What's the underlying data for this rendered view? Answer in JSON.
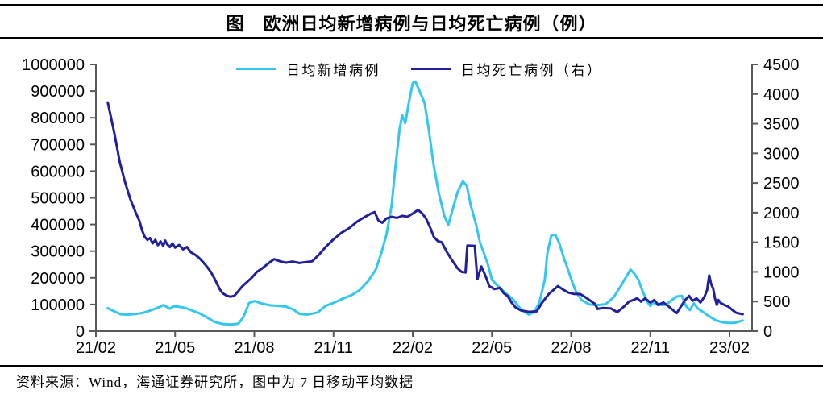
{
  "header": {
    "title": "图　欧洲日均新增病例与日均死亡病例（例）"
  },
  "footer": {
    "source": "资料来源：Wind，海通证券研究所，图中为 7 日移动平均数据"
  },
  "colors": {
    "new_cases_line": "#33C7F0",
    "deaths_line": "#21219B",
    "axis_line": "#595959",
    "text": "#000000"
  },
  "chart_data": {
    "type": "line",
    "title": "图　欧洲日均新增病例与日均死亡病例（例）",
    "xlabel": "",
    "ylabel_left": "",
    "ylabel_right": "",
    "grid": false,
    "legend_position": "top-center",
    "legend": [
      {
        "label": "日均新增病例",
        "color": "#33C7F0",
        "axis": "left"
      },
      {
        "label": "日均死亡病例（右）",
        "color": "#21219B",
        "axis": "right"
      }
    ],
    "x_axis": {
      "tick_labels": [
        "21/02",
        "21/05",
        "21/08",
        "21/11",
        "22/02",
        "22/05",
        "22/08",
        "22/11",
        "23/02"
      ],
      "months_per_tick": 3,
      "range_months": [
        0,
        24.6
      ]
    },
    "y_axis_left": {
      "min": 0,
      "max": 1000000,
      "step": 100000,
      "tick_labels": [
        "0",
        "100000",
        "200000",
        "300000",
        "400000",
        "500000",
        "600000",
        "700000",
        "800000",
        "900000",
        "1000000"
      ]
    },
    "y_axis_right": {
      "min": 0,
      "max": 4500,
      "step": 500,
      "tick_labels": [
        "0",
        "500",
        "1000",
        "1500",
        "2000",
        "2500",
        "3000",
        "3500",
        "4000",
        "4500"
      ]
    },
    "series": [
      {
        "name": "日均新增病例",
        "axis": "left",
        "color": "#33C7F0",
        "points": [
          [
            0.45,
            86000
          ],
          [
            0.7,
            74000
          ],
          [
            0.95,
            63000
          ],
          [
            1.2,
            62000
          ],
          [
            1.5,
            64000
          ],
          [
            1.8,
            69000
          ],
          [
            2.1,
            79000
          ],
          [
            2.4,
            90000
          ],
          [
            2.55,
            98000
          ],
          [
            2.7,
            90000
          ],
          [
            2.8,
            84000
          ],
          [
            2.95,
            93000
          ],
          [
            3.1,
            92000
          ],
          [
            3.35,
            88000
          ],
          [
            3.6,
            79000
          ],
          [
            3.9,
            68000
          ],
          [
            4.2,
            52000
          ],
          [
            4.5,
            34000
          ],
          [
            4.8,
            27000
          ],
          [
            5.1,
            25000
          ],
          [
            5.4,
            28000
          ],
          [
            5.6,
            55000
          ],
          [
            5.8,
            105000
          ],
          [
            6.0,
            113000
          ],
          [
            6.3,
            103000
          ],
          [
            6.6,
            97000
          ],
          [
            6.9,
            95000
          ],
          [
            7.2,
            92000
          ],
          [
            7.5,
            80000
          ],
          [
            7.7,
            65000
          ],
          [
            8.0,
            62000
          ],
          [
            8.4,
            70000
          ],
          [
            8.7,
            95000
          ],
          [
            9.0,
            106000
          ],
          [
            9.3,
            120000
          ],
          [
            9.7,
            136000
          ],
          [
            10.0,
            155000
          ],
          [
            10.3,
            186000
          ],
          [
            10.6,
            230000
          ],
          [
            10.8,
            290000
          ],
          [
            11.0,
            360000
          ],
          [
            11.2,
            470000
          ],
          [
            11.35,
            620000
          ],
          [
            11.5,
            755000
          ],
          [
            11.6,
            810000
          ],
          [
            11.72,
            780000
          ],
          [
            11.85,
            855000
          ],
          [
            12.0,
            930000
          ],
          [
            12.1,
            936000
          ],
          [
            12.25,
            902000
          ],
          [
            12.45,
            856000
          ],
          [
            12.6,
            762000
          ],
          [
            12.8,
            618000
          ],
          [
            13.0,
            512000
          ],
          [
            13.2,
            432000
          ],
          [
            13.35,
            398000
          ],
          [
            13.5,
            452000
          ],
          [
            13.7,
            522000
          ],
          [
            13.9,
            562000
          ],
          [
            14.05,
            545000
          ],
          [
            14.2,
            472000
          ],
          [
            14.4,
            400000
          ],
          [
            14.55,
            332000
          ],
          [
            14.7,
            292000
          ],
          [
            14.85,
            250000
          ],
          [
            15.0,
            192000
          ],
          [
            15.25,
            168000
          ],
          [
            15.5,
            144000
          ],
          [
            15.8,
            120000
          ],
          [
            16.1,
            82000
          ],
          [
            16.4,
            62000
          ],
          [
            16.6,
            72000
          ],
          [
            16.8,
            108000
          ],
          [
            17.0,
            192000
          ],
          [
            17.1,
            292000
          ],
          [
            17.25,
            358000
          ],
          [
            17.4,
            362000
          ],
          [
            17.55,
            330000
          ],
          [
            17.7,
            282000
          ],
          [
            17.9,
            226000
          ],
          [
            18.05,
            182000
          ],
          [
            18.2,
            146000
          ],
          [
            18.4,
            116000
          ],
          [
            18.7,
            100000
          ],
          [
            19.0,
            98000
          ],
          [
            19.3,
            101000
          ],
          [
            19.6,
            126000
          ],
          [
            19.9,
            172000
          ],
          [
            20.1,
            206000
          ],
          [
            20.25,
            231000
          ],
          [
            20.4,
            215000
          ],
          [
            20.55,
            192000
          ],
          [
            20.7,
            152000
          ],
          [
            20.9,
            108000
          ],
          [
            21.0,
            94000
          ],
          [
            21.1,
            108000
          ],
          [
            21.3,
            98000
          ],
          [
            21.6,
            99000
          ],
          [
            21.8,
            116000
          ],
          [
            22.0,
            130000
          ],
          [
            22.2,
            132000
          ],
          [
            22.35,
            94000
          ],
          [
            22.5,
            79000
          ],
          [
            22.65,
            104000
          ],
          [
            22.8,
            85000
          ],
          [
            23.0,
            72000
          ],
          [
            23.2,
            57000
          ],
          [
            23.5,
            40000
          ],
          [
            23.75,
            33000
          ],
          [
            24.0,
            31000
          ],
          [
            24.2,
            31000
          ],
          [
            24.5,
            40000
          ]
        ]
      },
      {
        "name": "日均死亡病例（右）",
        "axis": "right",
        "color": "#21219B",
        "points": [
          [
            0.45,
            3860
          ],
          [
            0.55,
            3650
          ],
          [
            0.7,
            3340
          ],
          [
            0.9,
            2860
          ],
          [
            1.1,
            2520
          ],
          [
            1.3,
            2230
          ],
          [
            1.5,
            2010
          ],
          [
            1.65,
            1860
          ],
          [
            1.75,
            1700
          ],
          [
            1.85,
            1590
          ],
          [
            1.95,
            1540
          ],
          [
            2.05,
            1570
          ],
          [
            2.15,
            1480
          ],
          [
            2.25,
            1540
          ],
          [
            2.35,
            1450
          ],
          [
            2.45,
            1515
          ],
          [
            2.55,
            1440
          ],
          [
            2.62,
            1530
          ],
          [
            2.7,
            1465
          ],
          [
            2.8,
            1420
          ],
          [
            2.9,
            1480
          ],
          [
            3.0,
            1410
          ],
          [
            3.15,
            1455
          ],
          [
            3.3,
            1380
          ],
          [
            3.45,
            1420
          ],
          [
            3.6,
            1330
          ],
          [
            3.75,
            1290
          ],
          [
            3.9,
            1240
          ],
          [
            4.05,
            1170
          ],
          [
            4.2,
            1090
          ],
          [
            4.35,
            1000
          ],
          [
            4.5,
            880
          ],
          [
            4.6,
            790
          ],
          [
            4.7,
            700
          ],
          [
            4.8,
            640
          ],
          [
            4.95,
            600
          ],
          [
            5.1,
            580
          ],
          [
            5.25,
            600
          ],
          [
            5.4,
            680
          ],
          [
            5.55,
            760
          ],
          [
            5.7,
            820
          ],
          [
            5.9,
            900
          ],
          [
            6.1,
            1000
          ],
          [
            6.3,
            1060
          ],
          [
            6.55,
            1150
          ],
          [
            6.75,
            1215
          ],
          [
            7.0,
            1175
          ],
          [
            7.2,
            1155
          ],
          [
            7.45,
            1175
          ],
          [
            7.7,
            1150
          ],
          [
            7.95,
            1165
          ],
          [
            8.2,
            1180
          ],
          [
            8.45,
            1290
          ],
          [
            8.7,
            1420
          ],
          [
            9.0,
            1550
          ],
          [
            9.3,
            1660
          ],
          [
            9.6,
            1740
          ],
          [
            9.9,
            1850
          ],
          [
            10.2,
            1930
          ],
          [
            10.45,
            1990
          ],
          [
            10.56,
            2010
          ],
          [
            10.7,
            1870
          ],
          [
            10.85,
            1830
          ],
          [
            11.0,
            1900
          ],
          [
            11.2,
            1930
          ],
          [
            11.4,
            1910
          ],
          [
            11.6,
            1945
          ],
          [
            11.8,
            1930
          ],
          [
            12.0,
            1985
          ],
          [
            12.2,
            2045
          ],
          [
            12.35,
            1990
          ],
          [
            12.5,
            1905
          ],
          [
            12.65,
            1760
          ],
          [
            12.8,
            1590
          ],
          [
            12.95,
            1520
          ],
          [
            13.1,
            1500
          ],
          [
            13.3,
            1330
          ],
          [
            13.5,
            1190
          ],
          [
            13.7,
            1060
          ],
          [
            13.85,
            1000
          ],
          [
            14.0,
            990
          ],
          [
            14.07,
            1445
          ],
          [
            14.35,
            1440
          ],
          [
            14.45,
            875
          ],
          [
            14.6,
            1090
          ],
          [
            14.75,
            940
          ],
          [
            14.9,
            760
          ],
          [
            15.1,
            710
          ],
          [
            15.3,
            730
          ],
          [
            15.45,
            640
          ],
          [
            15.6,
            590
          ],
          [
            15.75,
            480
          ],
          [
            15.9,
            400
          ],
          [
            16.1,
            350
          ],
          [
            16.4,
            325
          ],
          [
            16.7,
            335
          ],
          [
            16.9,
            480
          ],
          [
            17.15,
            625
          ],
          [
            17.5,
            760
          ],
          [
            17.7,
            700
          ],
          [
            17.9,
            650
          ],
          [
            18.1,
            630
          ],
          [
            18.35,
            625
          ],
          [
            18.6,
            555
          ],
          [
            18.9,
            460
          ],
          [
            19.0,
            375
          ],
          [
            19.2,
            390
          ],
          [
            19.5,
            385
          ],
          [
            19.75,
            320
          ],
          [
            20.0,
            415
          ],
          [
            20.2,
            500
          ],
          [
            20.35,
            525
          ],
          [
            20.5,
            555
          ],
          [
            20.65,
            498
          ],
          [
            20.8,
            554
          ],
          [
            21.0,
            484
          ],
          [
            21.15,
            526
          ],
          [
            21.3,
            443
          ],
          [
            21.5,
            484
          ],
          [
            21.7,
            415
          ],
          [
            21.9,
            340
          ],
          [
            22.0,
            305
          ],
          [
            22.2,
            443
          ],
          [
            22.32,
            526
          ],
          [
            22.47,
            595
          ],
          [
            22.6,
            512
          ],
          [
            22.75,
            554
          ],
          [
            22.9,
            484
          ],
          [
            23.05,
            581
          ],
          [
            23.15,
            692
          ],
          [
            23.23,
            942
          ],
          [
            23.3,
            800
          ],
          [
            23.38,
            720
          ],
          [
            23.45,
            554
          ],
          [
            23.52,
            443
          ],
          [
            23.58,
            526
          ],
          [
            23.68,
            470
          ],
          [
            23.8,
            443
          ],
          [
            23.95,
            415
          ],
          [
            24.1,
            360
          ],
          [
            24.25,
            310
          ],
          [
            24.5,
            285
          ]
        ]
      }
    ]
  }
}
